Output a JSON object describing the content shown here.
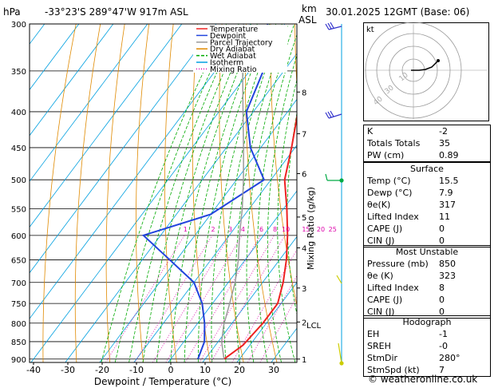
{
  "header": {
    "hpa_label": "hPa",
    "location": "-33°23'S  289°47'W  917m  ASL",
    "km_label": "km",
    "asl_label": "ASL",
    "date": "30.01.2025  12GMT  (Base: 06)"
  },
  "chart_data": {
    "type": "line",
    "title": "",
    "xlabel": "Dewpoint / Temperature (°C)",
    "ylabel": "hPa",
    "secondary_ylabel": "Mixing Ratio (g/kg)",
    "pressure_ticks": [
      300,
      350,
      400,
      450,
      500,
      550,
      600,
      650,
      700,
      750,
      800,
      850,
      900
    ],
    "temperature_ticks": [
      -40,
      -30,
      -20,
      -10,
      0,
      10,
      20,
      30
    ],
    "ylim": [
      900,
      300
    ],
    "xlim": [
      -42,
      37
    ],
    "km_ticks": [
      {
        "label": "1",
        "p": 900
      },
      {
        "label": "2",
        "p": 797
      },
      {
        "label": "3",
        "p": 713
      },
      {
        "label": "4",
        "p": 625
      },
      {
        "label": "5",
        "p": 565
      },
      {
        "label": "6",
        "p": 490
      },
      {
        "label": "7",
        "p": 430
      },
      {
        "label": "8",
        "p": 375
      }
    ],
    "lcl_label": "LCL",
    "lcl_pressure": 805,
    "mixing_ratio_labels": [
      "1",
      "2",
      "3",
      "4",
      "6",
      "8",
      "10",
      "15",
      "20",
      "25"
    ],
    "mixing_ratio_values": [
      1,
      2,
      3,
      4,
      6,
      8,
      10,
      15,
      20,
      25
    ],
    "legend": [
      "Temperature",
      "Dewpoint",
      "Parcel Trajectory",
      "Dry Adiabat",
      "Wet Adiabat",
      "Isotherm",
      "Mixing Ratio"
    ],
    "series": [
      {
        "name": "Temperature",
        "color": "#ee2222",
        "points": [
          [
            900,
            15.5
          ],
          [
            860,
            18
          ],
          [
            800,
            19
          ],
          [
            750,
            19
          ],
          [
            700,
            16
          ],
          [
            650,
            12
          ],
          [
            600,
            7
          ],
          [
            550,
            1
          ],
          [
            500,
            -6
          ],
          [
            450,
            -11
          ],
          [
            400,
            -17
          ],
          [
            350,
            -26
          ],
          [
            300,
            -36
          ]
        ]
      },
      {
        "name": "Dewpoint",
        "color": "#2244dd",
        "points": [
          [
            900,
            7.9
          ],
          [
            850,
            6
          ],
          [
            800,
            2
          ],
          [
            750,
            -3
          ],
          [
            700,
            -10
          ],
          [
            650,
            -22
          ],
          [
            600,
            -35
          ],
          [
            560,
            -20
          ],
          [
            500,
            -12
          ],
          [
            450,
            -23
          ],
          [
            400,
            -32
          ],
          [
            350,
            -36
          ],
          [
            300,
            -45
          ]
        ]
      },
      {
        "name": "Parcel Trajectory",
        "color": "#999999",
        "points": [
          [
            900,
            15.5
          ],
          [
            850,
            11
          ],
          [
            805,
            8
          ],
          [
            750,
            5
          ],
          [
            700,
            2
          ],
          [
            650,
            -2
          ],
          [
            600,
            -7
          ],
          [
            550,
            -12
          ],
          [
            500,
            -18
          ],
          [
            450,
            -25
          ],
          [
            400,
            -33
          ],
          [
            350,
            -42
          ],
          [
            300,
            -52
          ]
        ]
      }
    ]
  },
  "hodograph": {
    "label": "kt",
    "ring_labels": [
      "10",
      "30",
      "40"
    ]
  },
  "indices": [
    {
      "label": "K",
      "value": "-2"
    },
    {
      "label": "Totals Totals",
      "value": "35"
    },
    {
      "label": "PW (cm)",
      "value": "0.89"
    }
  ],
  "surface": {
    "title": "Surface",
    "rows": [
      {
        "label": "Temp (°C)",
        "value": "15.5"
      },
      {
        "label": "Dewp (°C)",
        "value": "7.9"
      },
      {
        "label": "θe(K)",
        "value": "317"
      },
      {
        "label": "Lifted Index",
        "value": "11"
      },
      {
        "label": "CAPE (J)",
        "value": "0"
      },
      {
        "label": "CIN (J)",
        "value": "0"
      }
    ]
  },
  "most_unstable": {
    "title": "Most Unstable",
    "rows": [
      {
        "label": "Pressure (mb)",
        "value": "850"
      },
      {
        "label": "θe (K)",
        "value": "323"
      },
      {
        "label": "Lifted Index",
        "value": "8"
      },
      {
        "label": "CAPE (J)",
        "value": "0"
      },
      {
        "label": "CIN (J)",
        "value": "0"
      }
    ]
  },
  "hodograph_table": {
    "title": "Hodograph",
    "rows": [
      {
        "label": "EH",
        "value": "-1"
      },
      {
        "label": "SREH",
        "value": "-0"
      },
      {
        "label": "StmDir",
        "value": "280°"
      },
      {
        "label": "StmSpd (kt)",
        "value": "7"
      }
    ]
  },
  "footer": "© weatheronline.co.uk",
  "colors": {
    "temperature": "#ee2222",
    "dewpoint": "#2244dd",
    "parcel": "#999999",
    "dry_adiabat": "#e08a00",
    "wet_adiabat": "#00aa00",
    "isotherm": "#00a0e0",
    "mixing_ratio": "#dd00aa"
  }
}
